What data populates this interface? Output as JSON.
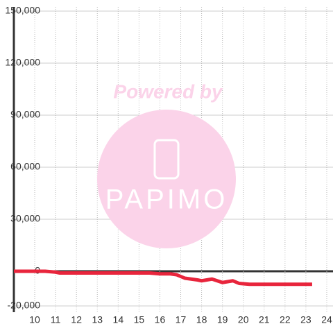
{
  "chart_data": {
    "type": "line",
    "x": [
      9,
      10,
      10.5,
      11,
      11.2,
      12,
      13,
      14,
      15,
      15.5,
      16,
      16.5,
      16.8,
      17.2,
      17.8,
      18,
      18.5,
      19,
      19.5,
      19.8,
      20.3,
      21,
      22,
      23.3
    ],
    "series": [
      {
        "name": null,
        "color": "#e8253c",
        "values": [
          0,
          0,
          0,
          -500,
          -1000,
          -1000,
          -1000,
          -1000,
          -1000,
          -1000,
          -1500,
          -1500,
          -2000,
          -4000,
          -5000,
          -5500,
          -4500,
          -6500,
          -5500,
          -7000,
          -7500,
          -7500,
          -7500,
          -7500
        ]
      }
    ],
    "xlim": [
      9,
      24.3
    ],
    "xticks": [
      10,
      11,
      12,
      13,
      14,
      15,
      16,
      17,
      18,
      19,
      20,
      21,
      22,
      23,
      24
    ],
    "ylim": [
      -20000,
      150000
    ],
    "yticks": [
      {
        "value": -20000,
        "label": "-20,000"
      },
      0,
      {
        "value": 30000,
        "label": "30,000"
      },
      {
        "value": 60000,
        "label": "60,000"
      },
      {
        "value": 90000,
        "label": "90,000"
      },
      {
        "value": 120000,
        "label": "120,000"
      },
      {
        "value": 150000,
        "label": "150,000"
      }
    ],
    "grid": true
  },
  "watermark": {
    "line1": "Powered by",
    "line2": "PAPIMO"
  }
}
